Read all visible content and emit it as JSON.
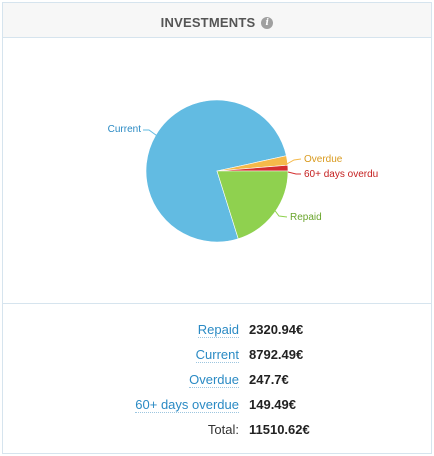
{
  "widget": {
    "title": "INVESTMENTS",
    "info_icon": "info-icon"
  },
  "chart_data": {
    "type": "pie",
    "categories": [
      "Current",
      "Overdue",
      "60+ days overdue",
      "Repaid"
    ],
    "values": [
      8792.49,
      247.7,
      149.49,
      2320.94
    ],
    "colors": [
      "#62bbe2",
      "#f5b94a",
      "#d42f2f",
      "#8fd14f"
    ],
    "label_colors": [
      "#2a8ac4",
      "#d99a1e",
      "#c52020",
      "#6aa52c"
    ],
    "labels": [
      "Current",
      "Overdue",
      "60+ days overdu",
      "Repaid"
    ],
    "legend": "none"
  },
  "summary": {
    "rows": [
      {
        "label": "Repaid",
        "value": "2320.94€"
      },
      {
        "label": "Current",
        "value": "8792.49€"
      },
      {
        "label": "Overdue",
        "value": "247.7€"
      },
      {
        "label": "60+ days overdue",
        "value": "149.49€"
      }
    ],
    "total_label": "Total:",
    "total_value": "11510.62€"
  }
}
